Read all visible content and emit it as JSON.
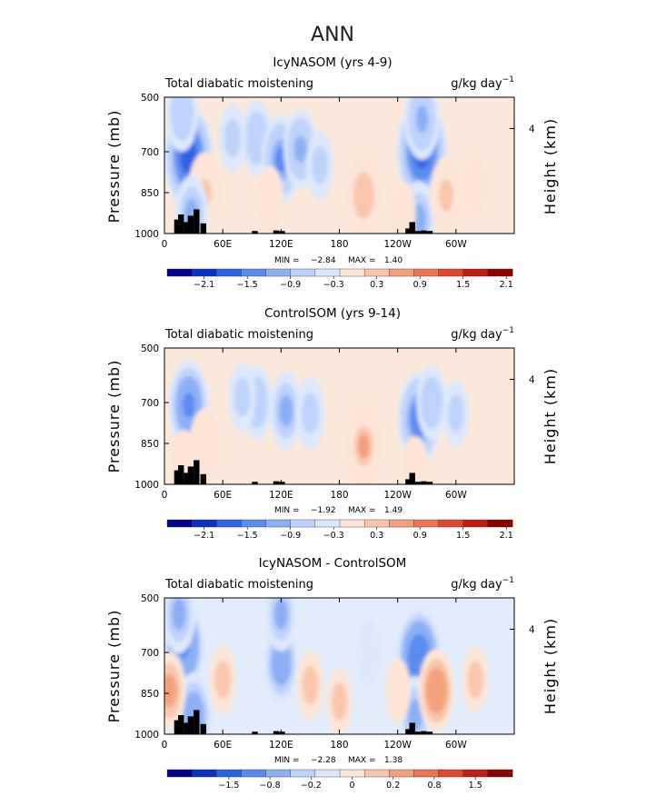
{
  "figure_title": "ANN",
  "chart_data": [
    {
      "type": "heatmap",
      "title": "IcyNASOM (yrs 4-9)",
      "field": "Total diabatic moistening",
      "units": "g/kg day",
      "units_exp": "−1",
      "ylabel": "Pressure (mb)",
      "ylabel_right": "Height (km)",
      "ylim": [
        1000,
        500
      ],
      "y_ticks": [
        "500",
        "700",
        "850",
        "1000"
      ],
      "height_ticks": [
        "4"
      ],
      "x_ticks": [
        "0",
        "60E",
        "120E",
        "180",
        "120W",
        "60W"
      ],
      "min_label": "MIN =",
      "min_value": "−2.84",
      "max_label": "MAX =",
      "max_value": "1.40",
      "colorbar_labels": [
        "−2.1",
        "−1.5",
        "−0.9",
        "−0.3",
        "0.3",
        "0.9",
        "1.5",
        "2.1"
      ],
      "colorbar_values": [
        -2.1,
        -1.5,
        -0.9,
        -0.3,
        0.3,
        0.9,
        1.5,
        2.1
      ],
      "blobs": [
        {
          "lon": 25,
          "p": 720,
          "value": -2.5
        },
        {
          "lon": 18,
          "p": 560,
          "value": -0.9
        },
        {
          "lon": 42,
          "p": 850,
          "value": 1.2
        },
        {
          "lon": 28,
          "p": 930,
          "value": -1.0
        },
        {
          "lon": 95,
          "p": 650,
          "value": -0.9
        },
        {
          "lon": 120,
          "p": 730,
          "value": -1.6
        },
        {
          "lon": 140,
          "p": 690,
          "value": -1.1
        },
        {
          "lon": 160,
          "p": 750,
          "value": -0.5
        },
        {
          "lon": 108,
          "p": 880,
          "value": 0.6
        },
        {
          "lon": 70,
          "p": 650,
          "value": -0.5
        },
        {
          "lon": 205,
          "p": 860,
          "value": 1.4
        },
        {
          "lon": 265,
          "p": 700,
          "value": -2.6
        },
        {
          "lon": 265,
          "p": 580,
          "value": -1.2
        },
        {
          "lon": 262,
          "p": 950,
          "value": -1.0
        },
        {
          "lon": 290,
          "p": 860,
          "value": 1.0
        },
        {
          "lon": 320,
          "p": 820,
          "value": 0.3
        },
        {
          "lon": 245,
          "p": 930,
          "value": 0.4
        }
      ]
    },
    {
      "type": "heatmap",
      "title": "ControlSOM (yrs 9-14)",
      "field": "Total diabatic moistening",
      "units": "g/kg day",
      "units_exp": "−1",
      "ylabel": "Pressure (mb)",
      "ylabel_right": "Height (km)",
      "ylim": [
        1000,
        500
      ],
      "y_ticks": [
        "500",
        "700",
        "850",
        "1000"
      ],
      "height_ticks": [
        "4"
      ],
      "x_ticks": [
        "0",
        "60E",
        "120E",
        "180",
        "120W",
        "60W"
      ],
      "min_label": "MIN =",
      "min_value": "−1.92",
      "max_label": "MAX =",
      "max_value": "1.49",
      "colorbar_labels": [
        "−2.1",
        "−1.5",
        "−0.9",
        "−0.3",
        "0.3",
        "0.9",
        "1.5",
        "2.1"
      ],
      "colorbar_values": [
        -2.1,
        -1.5,
        -0.9,
        -0.3,
        0.3,
        0.9,
        1.5,
        2.1
      ],
      "blobs": [
        {
          "lon": 25,
          "p": 710,
          "value": -1.7
        },
        {
          "lon": 42,
          "p": 860,
          "value": 0.9
        },
        {
          "lon": 20,
          "p": 930,
          "value": 0.6
        },
        {
          "lon": 95,
          "p": 700,
          "value": -0.8
        },
        {
          "lon": 125,
          "p": 730,
          "value": -1.0
        },
        {
          "lon": 150,
          "p": 740,
          "value": -0.7
        },
        {
          "lon": 80,
          "p": 680,
          "value": -0.5
        },
        {
          "lon": 205,
          "p": 860,
          "value": 1.5
        },
        {
          "lon": 262,
          "p": 760,
          "value": -1.9
        },
        {
          "lon": 275,
          "p": 700,
          "value": -0.8
        },
        {
          "lon": 300,
          "p": 740,
          "value": -0.4
        },
        {
          "lon": 258,
          "p": 950,
          "value": 0.5
        }
      ]
    },
    {
      "type": "heatmap",
      "title": "IcyNASOM - ControlSOM",
      "field": "Total diabatic moistening",
      "units": "g/kg day",
      "units_exp": "−1",
      "ylabel": "Pressure (mb)",
      "ylabel_right": "Height (km)",
      "ylim": [
        1000,
        500
      ],
      "y_ticks": [
        "500",
        "700",
        "850",
        "1000"
      ],
      "height_ticks": [
        "4"
      ],
      "x_ticks": [
        "0",
        "60E",
        "120E",
        "180",
        "120W",
        "60W"
      ],
      "min_label": "MIN =",
      "min_value": "−2.28",
      "max_label": "MAX =",
      "max_value": "1.38",
      "colorbar_labels": [
        "−1.5",
        "−0.8",
        "−0.2",
        "0",
        "0.2",
        "0.8",
        "1.5"
      ],
      "colorbar_values": [
        -1.5,
        -0.8,
        -0.2,
        0,
        0.2,
        0.8,
        1.5
      ],
      "blobs": [
        {
          "lon": 20,
          "p": 680,
          "value": -1.8
        },
        {
          "lon": 15,
          "p": 560,
          "value": -1.0
        },
        {
          "lon": 30,
          "p": 930,
          "value": -1.4
        },
        {
          "lon": 5,
          "p": 840,
          "value": 1.0
        },
        {
          "lon": 60,
          "p": 800,
          "value": 0.5
        },
        {
          "lon": 120,
          "p": 740,
          "value": -1.2
        },
        {
          "lon": 120,
          "p": 560,
          "value": -0.8
        },
        {
          "lon": 150,
          "p": 820,
          "value": 0.5
        },
        {
          "lon": 180,
          "p": 880,
          "value": 0.4
        },
        {
          "lon": 210,
          "p": 700,
          "value": -0.3
        },
        {
          "lon": 262,
          "p": 720,
          "value": -2.2
        },
        {
          "lon": 258,
          "p": 930,
          "value": -1.0
        },
        {
          "lon": 280,
          "p": 840,
          "value": 1.3
        },
        {
          "lon": 320,
          "p": 800,
          "value": 0.4
        },
        {
          "lon": 240,
          "p": 840,
          "value": 0.3
        }
      ]
    }
  ],
  "colors": [
    "#00008c",
    "#0a30c8",
    "#2a64e6",
    "#5a8cf0",
    "#8cb0f6",
    "#bed3fb",
    "#dde8fd",
    "#fde6d8",
    "#f9c6ac",
    "#f4a07c",
    "#ee7352",
    "#e4462a",
    "#c01e10",
    "#8c0000"
  ]
}
